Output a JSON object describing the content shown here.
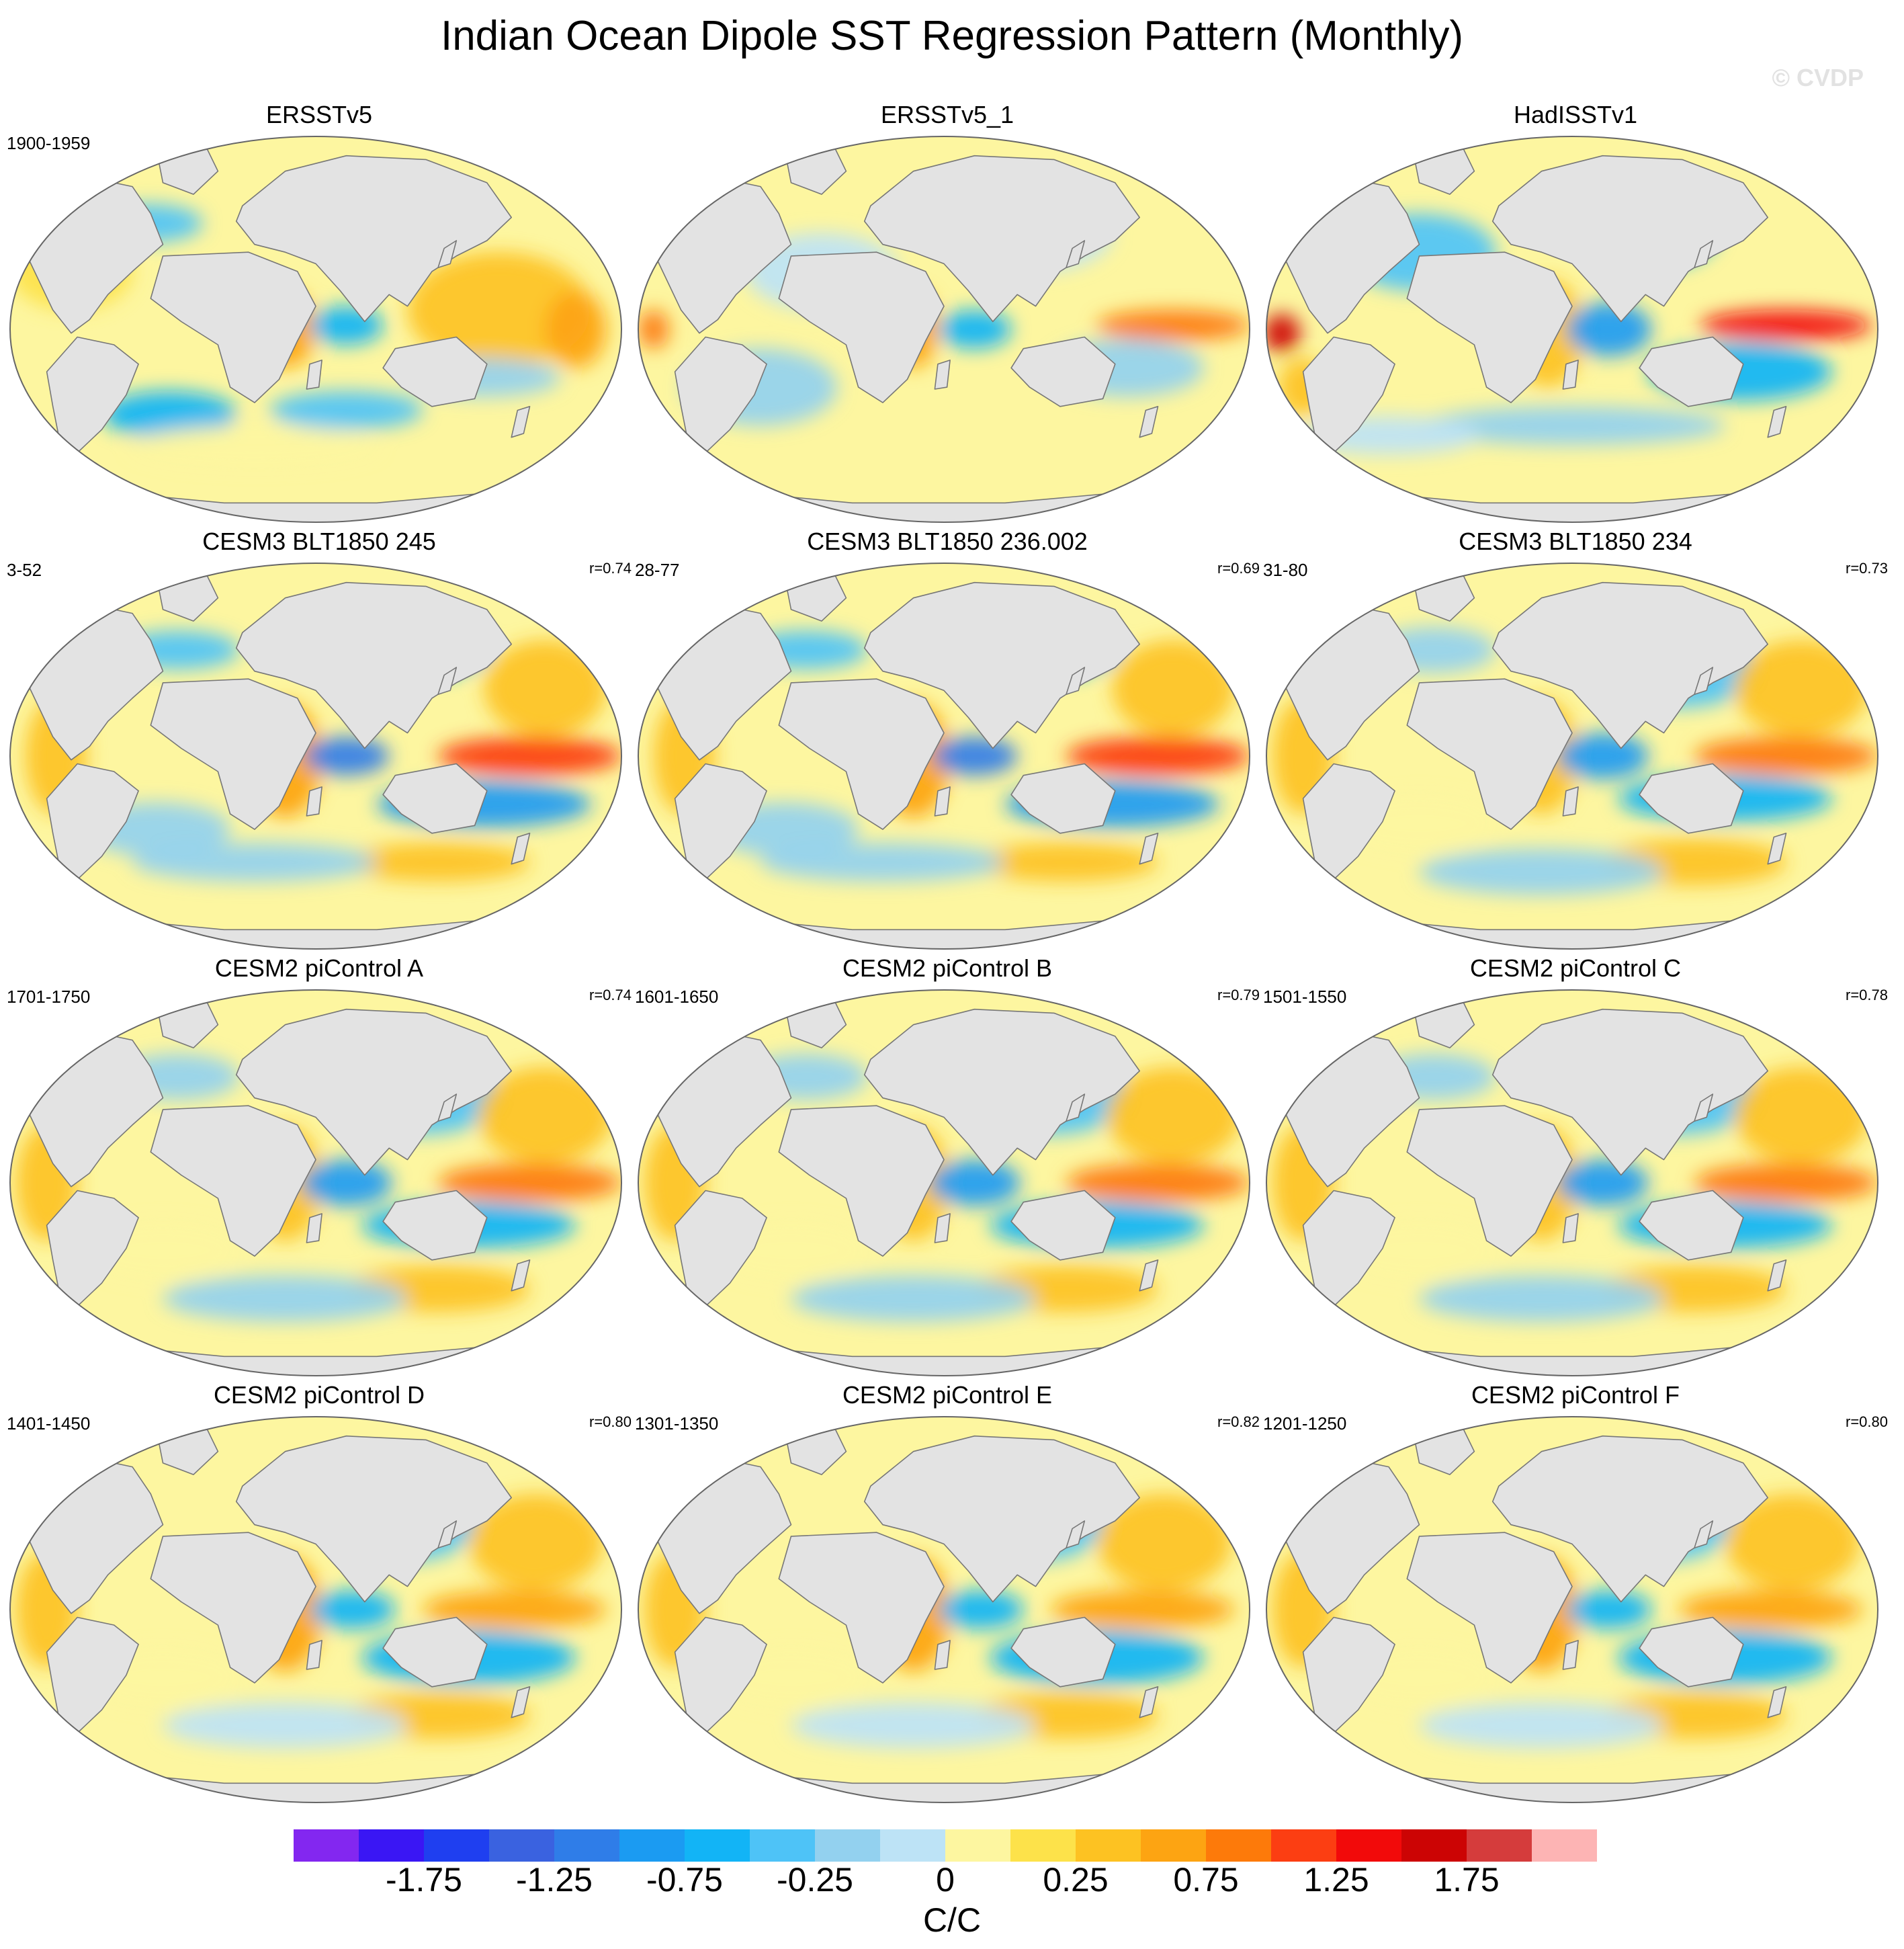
{
  "title": "Indian Ocean Dipole SST Regression Pattern (Monthly)",
  "watermark": "© CVDP",
  "panels": [
    {
      "title": "ERSSTv5",
      "period": "1900-1959",
      "r": "",
      "pattern": "obs1"
    },
    {
      "title": "ERSSTv5_1",
      "period": "",
      "r": "",
      "pattern": "obs2"
    },
    {
      "title": "HadISSTv1",
      "period": "",
      "r": "",
      "pattern": "obs3"
    },
    {
      "title": "CESM3 BLT1850 245",
      "period": "3-52",
      "r": "r=0.74",
      "pattern": "model_strong"
    },
    {
      "title": "CESM3 BLT1850 236.002",
      "period": "28-77",
      "r": "r=0.69",
      "pattern": "model_strong"
    },
    {
      "title": "CESM3 BLT1850 234",
      "period": "31-80",
      "r": "r=0.73",
      "pattern": "model_mid"
    },
    {
      "title": "CESM2 piControl A",
      "period": "1701-1750",
      "r": "r=0.74",
      "pattern": "model_mid"
    },
    {
      "title": "CESM2 piControl B",
      "period": "1601-1650",
      "r": "r=0.79",
      "pattern": "model_mid"
    },
    {
      "title": "CESM2 piControl C",
      "period": "1501-1550",
      "r": "r=0.78",
      "pattern": "model_mid"
    },
    {
      "title": "CESM2 piControl D",
      "period": "1401-1450",
      "r": "r=0.80",
      "pattern": "model_weak"
    },
    {
      "title": "CESM2 piControl E",
      "period": "1301-1350",
      "r": "r=0.82",
      "pattern": "model_weak"
    },
    {
      "title": "CESM2 piControl F",
      "period": "1201-1250",
      "r": "r=0.80",
      "pattern": "model_weak"
    }
  ],
  "colorbar": {
    "units": "C/C",
    "colors": [
      "#8327f0",
      "#3a16f4",
      "#1f3ff0",
      "#3a62e0",
      "#2f7de8",
      "#1b9bf2",
      "#12b4f6",
      "#4ec3f7",
      "#93d1ef",
      "#bde3f6",
      "#fdf6a0",
      "#fde24a",
      "#fdc222",
      "#fda412",
      "#fd7a0a",
      "#fc3e12",
      "#f20a0a",
      "#cc0404",
      "#d53c3c",
      "#fdb4b4"
    ],
    "labels": [
      "-1.75",
      "-1.25",
      "-0.75",
      "-0.25",
      "0",
      "0.25",
      "0.75",
      "1.25",
      "1.75"
    ]
  },
  "field_colors": {
    "land": "#e3e3e3",
    "coast": "#777777"
  }
}
